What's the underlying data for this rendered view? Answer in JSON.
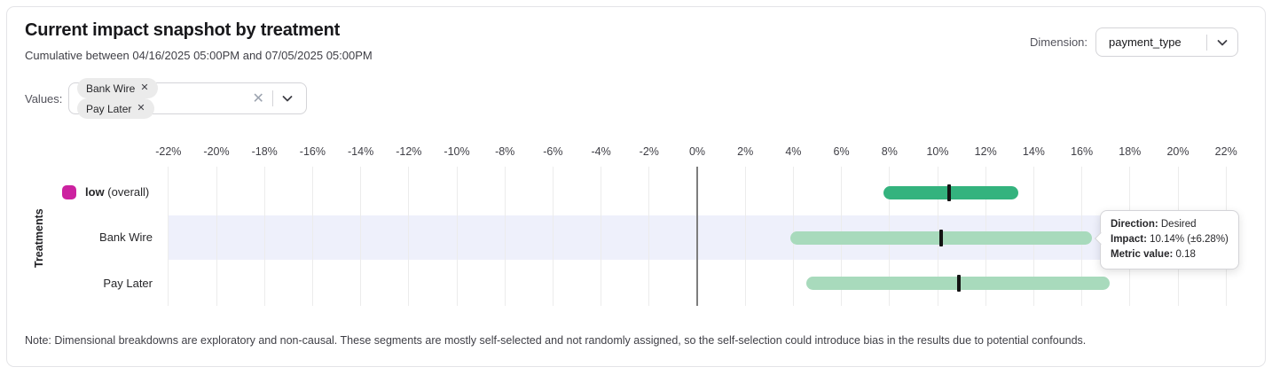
{
  "header": {
    "title": "Current impact snapshot by treatment",
    "subtitle": "Cumulative between 04/16/2025 05:00PM and 07/05/2025 05:00PM",
    "dimension_label": "Dimension:",
    "dimension_value": "payment_type"
  },
  "filters": {
    "values_label": "Values:",
    "chips": [
      {
        "label": "Bank Wire",
        "remove_glyph": "✕"
      },
      {
        "label": "Pay Later",
        "remove_glyph": "✕"
      }
    ],
    "clear_glyph": "✕"
  },
  "chart_data": {
    "type": "bar",
    "subtype": "horizontal-interval-with-point-marker",
    "title": "",
    "xlabel": "",
    "ylabel": "Treatments",
    "xlim": [
      -23,
      23
    ],
    "grid": true,
    "x_ticks": [
      "-22%",
      "-20%",
      "-18%",
      "-16%",
      "-14%",
      "-12%",
      "-10%",
      "-8%",
      "-6%",
      "-4%",
      "-2%",
      "0%",
      "2%",
      "4%",
      "6%",
      "8%",
      "10%",
      "12%",
      "14%",
      "16%",
      "18%",
      "20%",
      "22%"
    ],
    "rows": [
      {
        "label": "low",
        "label_suffix": " (overall)",
        "swatch_color": "#cc22a0",
        "bar_color": "#34b37e",
        "impact_pct": 10.48,
        "ci_low_pct": 7.75,
        "ci_high_pct": 13.35,
        "highlighted": false
      },
      {
        "label": "Bank Wire",
        "label_suffix": "",
        "swatch_color": null,
        "bar_color": "#a8dabc",
        "impact_pct": 10.14,
        "ci_low_pct": 3.86,
        "ci_high_pct": 16.42,
        "highlighted": true
      },
      {
        "label": "Pay Later",
        "label_suffix": "",
        "swatch_color": null,
        "bar_color": "#a8dabc",
        "impact_pct": 10.87,
        "ci_low_pct": 4.55,
        "ci_high_pct": 17.16,
        "highlighted": false
      }
    ],
    "colors": {
      "band": "#eef0fb",
      "gridline": "#ececec",
      "zero_line": "#7d7d7d",
      "marker": "#141414"
    }
  },
  "tooltip": {
    "direction_label": "Direction:",
    "direction_value": " Desired",
    "impact_label": "Impact:",
    "impact_value": " 10.14% (±6.28%)",
    "metric_label": "Metric value:",
    "metric_value": " 0.18"
  },
  "note": "Note: Dimensional breakdowns are exploratory and non-causal. These segments are mostly self-selected and not randomly assigned, so the self-selection could introduce bias in the results due to potential confounds."
}
